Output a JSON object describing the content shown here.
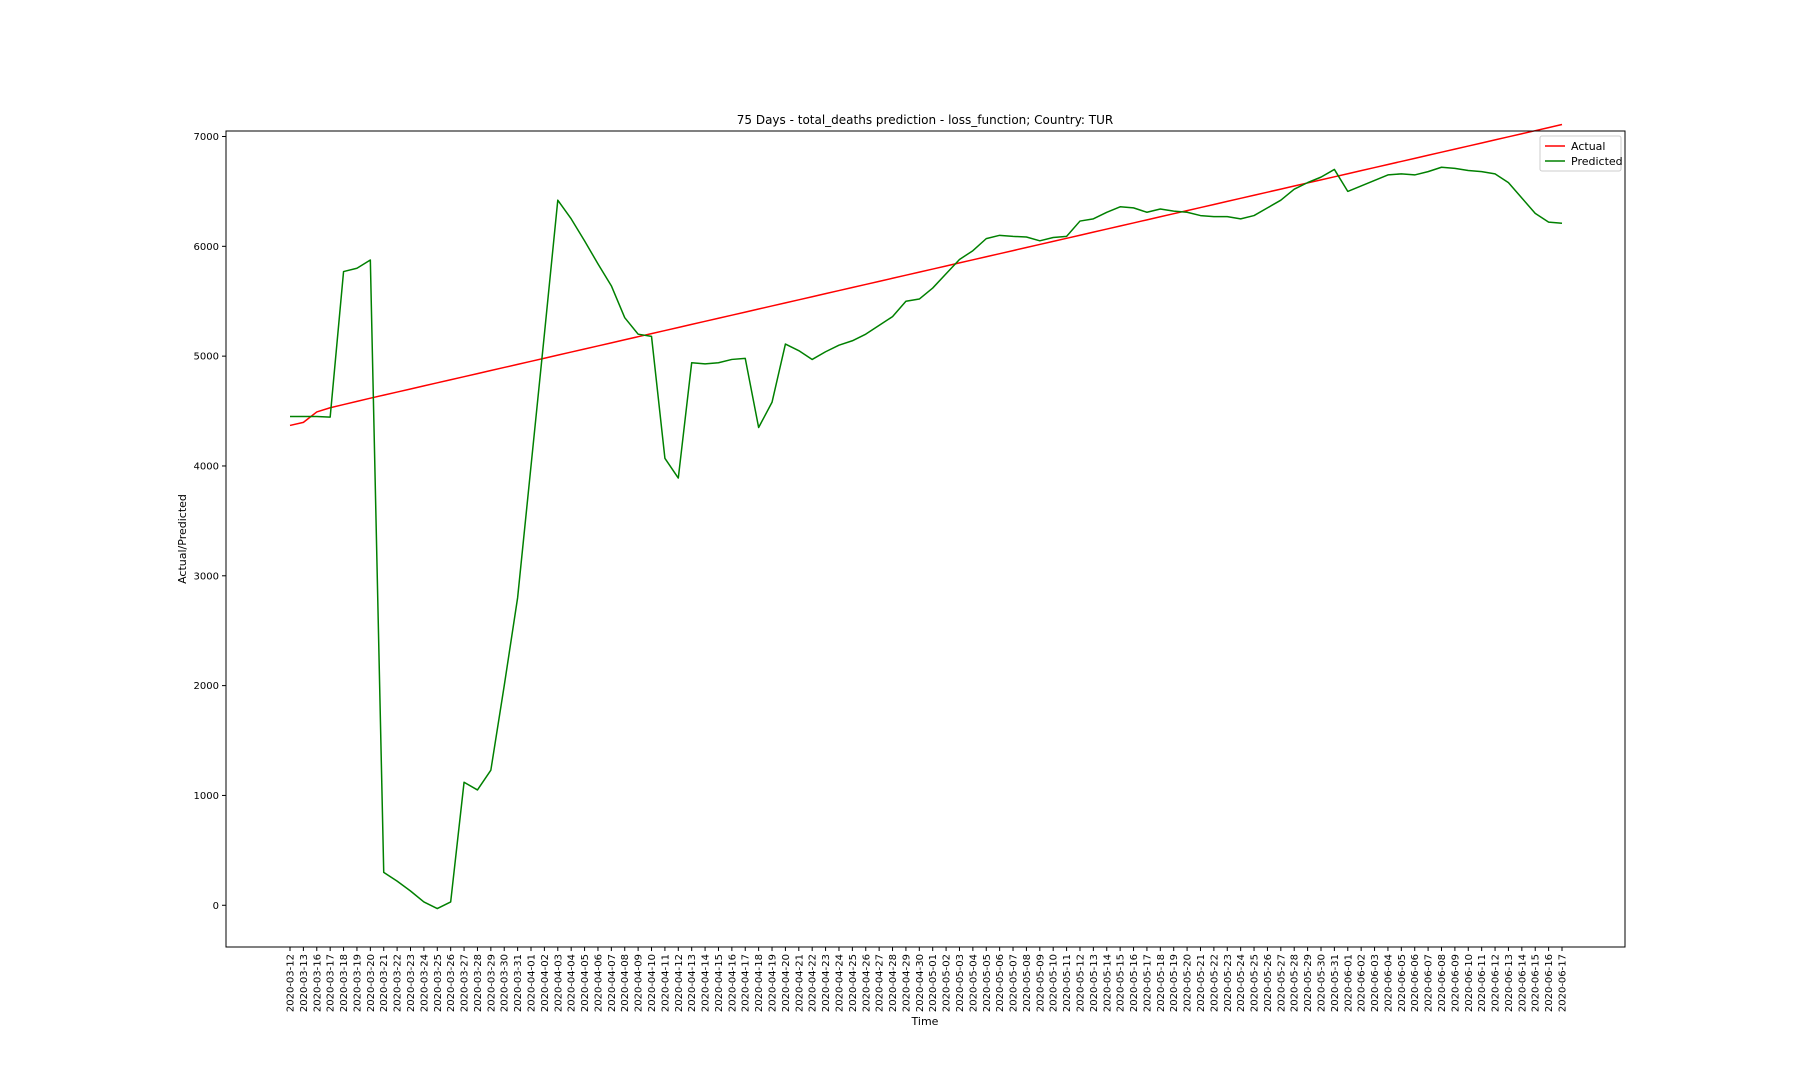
{
  "chart_data": {
    "type": "line",
    "title": "75 Days - total_deaths prediction - loss_function; Country: TUR",
    "xlabel": "Time",
    "ylabel": "Actual/Predicted",
    "ylim": [
      -380,
      7050
    ],
    "yticks": [
      0,
      1000,
      2000,
      3000,
      4000,
      5000,
      6000,
      7000
    ],
    "grid": false,
    "legend_position": "top-right",
    "x": [
      "2020-03-12",
      "2020-03-13",
      "2020-03-16",
      "2020-03-17",
      "2020-03-18",
      "2020-03-19",
      "2020-03-20",
      "2020-03-21",
      "2020-03-22",
      "2020-03-23",
      "2020-03-24",
      "2020-03-25",
      "2020-03-26",
      "2020-03-27",
      "2020-03-28",
      "2020-03-29",
      "2020-03-30",
      "2020-03-31",
      "2020-04-01",
      "2020-04-02",
      "2020-04-03",
      "2020-04-04",
      "2020-04-05",
      "2020-04-06",
      "2020-04-07",
      "2020-04-08",
      "2020-04-09",
      "2020-04-10",
      "2020-04-11",
      "2020-04-12",
      "2020-04-13",
      "2020-04-14",
      "2020-04-15",
      "2020-04-16",
      "2020-04-17",
      "2020-04-18",
      "2020-04-19",
      "2020-04-20",
      "2020-04-21",
      "2020-04-22",
      "2020-04-23",
      "2020-04-24",
      "2020-04-25",
      "2020-04-26",
      "2020-04-27",
      "2020-04-28",
      "2020-04-29",
      "2020-04-30",
      "2020-05-01",
      "2020-05-02",
      "2020-05-03",
      "2020-05-04",
      "2020-05-05",
      "2020-05-06",
      "2020-05-07",
      "2020-05-08",
      "2020-05-09",
      "2020-05-10",
      "2020-05-11",
      "2020-05-12",
      "2020-05-13",
      "2020-05-14",
      "2020-05-15",
      "2020-05-16",
      "2020-05-17",
      "2020-05-18",
      "2020-05-19",
      "2020-05-20",
      "2020-05-21",
      "2020-05-22",
      "2020-05-23",
      "2020-05-24",
      "2020-05-25",
      "2020-05-26",
      "2020-05-27",
      "2020-05-28",
      "2020-05-29",
      "2020-05-30",
      "2020-05-31",
      "2020-06-01",
      "2020-06-02",
      "2020-06-03",
      "2020-06-04",
      "2020-06-05",
      "2020-06-06",
      "2020-06-07",
      "2020-06-08",
      "2020-06-09",
      "2020-06-10",
      "2020-06-11",
      "2020-06-12",
      "2020-06-13",
      "2020-06-14",
      "2020-06-15",
      "2020-06-16",
      "2020-06-17"
    ],
    "series": [
      {
        "name": "Actual",
        "color": "#ff0000",
        "values": [
          4369,
          4397,
          4492,
          4530,
          4559,
          4588,
          4617,
          4645,
          4673,
          4701,
          4729,
          4757,
          4785,
          4813,
          4841,
          4869,
          4897,
          4925,
          4953,
          4981,
          5009,
          5037,
          5065,
          5093,
          5121,
          5149,
          5177,
          5205,
          5233,
          5261,
          5289,
          5317,
          5345,
          5373,
          5401,
          5429,
          5457,
          5485,
          5513,
          5541,
          5569,
          5597,
          5625,
          5653,
          5681,
          5709,
          5737,
          5765,
          5793,
          5821,
          5849,
          5877,
          5905,
          5933,
          5961,
          5989,
          6017,
          6045,
          6073,
          6101,
          6129,
          6157,
          6185,
          6213,
          6241,
          6269,
          6297,
          6325,
          6353,
          6381,
          6409,
          6437,
          6465,
          6493,
          6521,
          6549,
          6577,
          6605,
          6633,
          6661,
          6689,
          6717,
          6745,
          6773,
          6801,
          6829,
          6857,
          6885,
          6913,
          6941,
          6969,
          6997,
          7025,
          7053,
          7081,
          7109
        ]
      },
      {
        "name": "Predicted",
        "color": "#008000",
        "values": [
          4450,
          4450,
          4450,
          4445,
          5770,
          5800,
          5875,
          300,
          220,
          130,
          30,
          -30,
          30,
          1120,
          1050,
          1230,
          2000,
          2800,
          4000,
          5200,
          6420,
          6250,
          6050,
          5840,
          5640,
          5350,
          5200,
          5180,
          4070,
          3890,
          4940,
          4930,
          4940,
          4970,
          4980,
          4350,
          4580,
          5110,
          5050,
          4970,
          5040,
          5100,
          5140,
          5200,
          5280,
          5360,
          5500,
          5520,
          5620,
          5750,
          5880,
          5960,
          6070,
          6100,
          6090,
          6085,
          6050,
          6080,
          6090,
          6230,
          6250,
          6310,
          6360,
          6350,
          6310,
          6340,
          6320,
          6310,
          6280,
          6270,
          6270,
          6250,
          6280,
          6350,
          6420,
          6520,
          6580,
          6630,
          6700,
          6500,
          6550,
          6600,
          6650,
          6660,
          6650,
          6680,
          6720,
          6710,
          6690,
          6680,
          6660,
          6580,
          6440,
          6300,
          6220,
          6210
        ]
      }
    ]
  }
}
